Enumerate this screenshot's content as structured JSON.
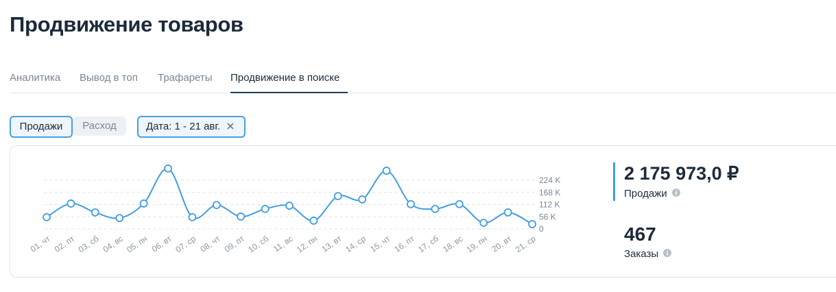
{
  "header": {
    "title": "Продвижение товаров"
  },
  "tabs": [
    "Аналитика",
    "Вывод в топ",
    "Трафареты",
    "Продвижение в поиске"
  ],
  "toggles": [
    "Продажи",
    "Расход"
  ],
  "filter": "Дата: 1 - 21 авг.",
  "stats": [
    {
      "value": "2 175 973,0 ₽",
      "label": "Продажи"
    },
    {
      "value": "467",
      "label": "Заказы"
    }
  ],
  "chart_data": {
    "type": "line",
    "color": "#3f9de3",
    "categories": [
      "01, чт",
      "02, пт",
      "03, сб",
      "04, вс",
      "05, пн",
      "06, вт",
      "07, ср",
      "08, чт",
      "09, пт",
      "10, сб",
      "11, вс",
      "12, пн",
      "13, вт",
      "14, ср",
      "15, чт",
      "16, пт",
      "17, сб",
      "18, вс",
      "19, пн",
      "20, вт",
      "21, ср"
    ],
    "values": [
      54000,
      117000,
      76000,
      50000,
      117000,
      278000,
      54000,
      110000,
      57000,
      92000,
      107000,
      38000,
      151000,
      136000,
      268000,
      114000,
      92000,
      114000,
      28000,
      76000,
      22000
    ],
    "ylim": [
      0,
      280000
    ],
    "yticks": [
      0,
      {
        "value": 56000,
        "label": "56 K"
      },
      {
        "value": 112000,
        "label": "112 K"
      },
      {
        "value": 168000,
        "label": "168 K"
      },
      {
        "value": 224000,
        "label": "224 K"
      }
    ],
    "grid": true
  }
}
